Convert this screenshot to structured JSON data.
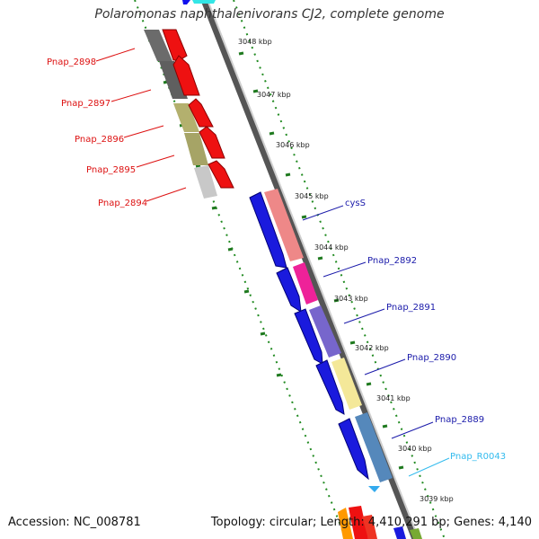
{
  "title": "Polaromonas naphthalenivorans CJ2, complete genome",
  "footer": {
    "accession": "Accession: NC_008781",
    "summary": "Topology: circular; Length: 4,410,291 bp; Genes: 4,140"
  },
  "ticks": [
    {
      "label": "3048 kbp"
    },
    {
      "label": "3047 kbp"
    },
    {
      "label": "3046 kbp"
    },
    {
      "label": "3045 kbp"
    },
    {
      "label": "3044 kbp"
    },
    {
      "label": "3043 kbp"
    },
    {
      "label": "3042 kbp"
    },
    {
      "label": "3041 kbp"
    },
    {
      "label": "3040 kbp"
    },
    {
      "label": "3039 kbp"
    }
  ],
  "left_genes": [
    {
      "label": "Pnap_2898",
      "color": "#dd1111"
    },
    {
      "label": "Pnap_2897",
      "color": "#dd1111"
    },
    {
      "label": "Pnap_2896",
      "color": "#dd1111"
    },
    {
      "label": "Pnap_2895",
      "color": "#dd1111"
    },
    {
      "label": "Pnap_2894",
      "color": "#dd1111"
    }
  ],
  "right_genes": [
    {
      "label": "cysS",
      "color": "#1a1aaa"
    },
    {
      "label": "Pnap_2892",
      "color": "#1a1aaa"
    },
    {
      "label": "Pnap_2891",
      "color": "#1a1aaa"
    },
    {
      "label": "Pnap_2890",
      "color": "#1a1aaa"
    },
    {
      "label": "Pnap_2889",
      "color": "#1a1aaa"
    },
    {
      "label": "Pnap_R0043",
      "color": "#33bbee"
    }
  ]
}
